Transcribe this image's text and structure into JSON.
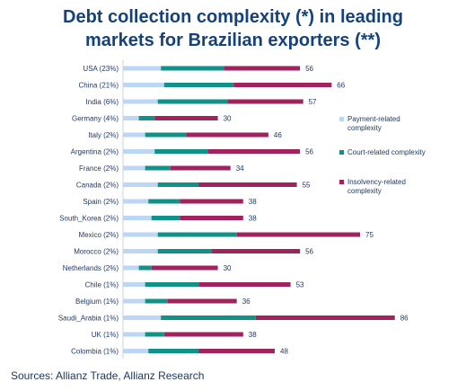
{
  "header": {
    "title_line1": "Debt collection complexity (*) in leading",
    "title_line2": "markets for Brazilian exporters (**)"
  },
  "footer": {
    "source": "Sources: Allianz Trade, Allianz Research"
  },
  "chart_data": {
    "type": "bar",
    "orientation": "horizontal",
    "stacked": true,
    "categories": [
      "USA (23%)",
      "China (21%)",
      "India (6%)",
      "Germany (4%)",
      "Italy (2%)",
      "Argentina (2%)",
      "France (2%)",
      "Canada (2%)",
      "Spain (2%)",
      "South_Korea (2%)",
      "Mexico (2%)",
      "Morocco (2%)",
      "Netherlands (2%)",
      "Chile (1%)",
      "Belgium (1%)",
      "Saudi_Arabia (1%)",
      "UK (1%)",
      "Colombia (1%)"
    ],
    "series": [
      {
        "name": "Payment-related complexity",
        "color": "#bcd6f5",
        "values": [
          12,
          13,
          11,
          5,
          7,
          10,
          7,
          11,
          8,
          9,
          11,
          11,
          5,
          7,
          7,
          12,
          7,
          8
        ]
      },
      {
        "name": "Court-related complexity",
        "color": "#119187",
        "values": [
          20,
          22,
          22,
          5,
          13,
          17,
          8,
          13,
          10,
          9,
          25,
          17,
          4,
          17,
          7,
          30,
          6,
          16
        ]
      },
      {
        "name": "Insolvency-related complexity",
        "color": "#a1235e",
        "values": [
          24,
          31,
          24,
          20,
          26,
          29,
          19,
          31,
          20,
          20,
          39,
          28,
          21,
          29,
          22,
          44,
          25,
          24
        ]
      }
    ],
    "totals": [
      56,
      66,
      57,
      30,
      46,
      56,
      34,
      55,
      38,
      38,
      75,
      56,
      30,
      53,
      36,
      86,
      38,
      48
    ],
    "xlim": [
      0,
      86
    ],
    "legend": "right",
    "grid": false
  }
}
